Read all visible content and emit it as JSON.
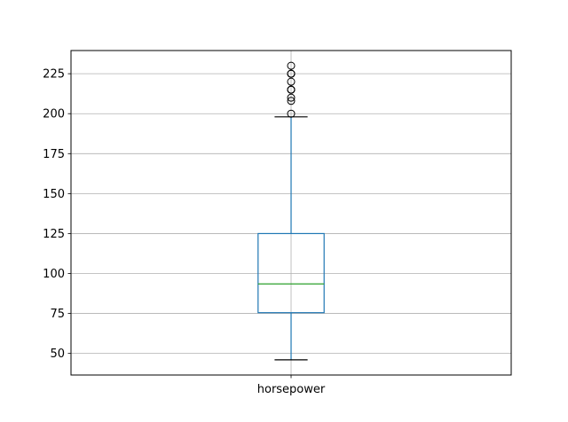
{
  "chart_data": {
    "type": "box",
    "categories": [
      "horsepower"
    ],
    "series": [
      {
        "whisker_low": 46,
        "q1": 75.5,
        "median": 93.5,
        "q3": 125,
        "whisker_high": 198,
        "outliers": [
          200,
          208,
          210,
          215,
          215,
          215,
          220,
          225,
          225,
          225,
          230
        ]
      }
    ],
    "yticks": [
      50,
      75,
      100,
      125,
      150,
      175,
      200,
      225
    ],
    "ylim": [
      36.5,
      239.5
    ],
    "grid": true,
    "colors": {
      "box": "#1f77b4",
      "median": "#2ca02c",
      "whisker": "#1f77b4",
      "cap": "#000000",
      "flier": "#000000",
      "grid": "#b0b0b0"
    }
  }
}
